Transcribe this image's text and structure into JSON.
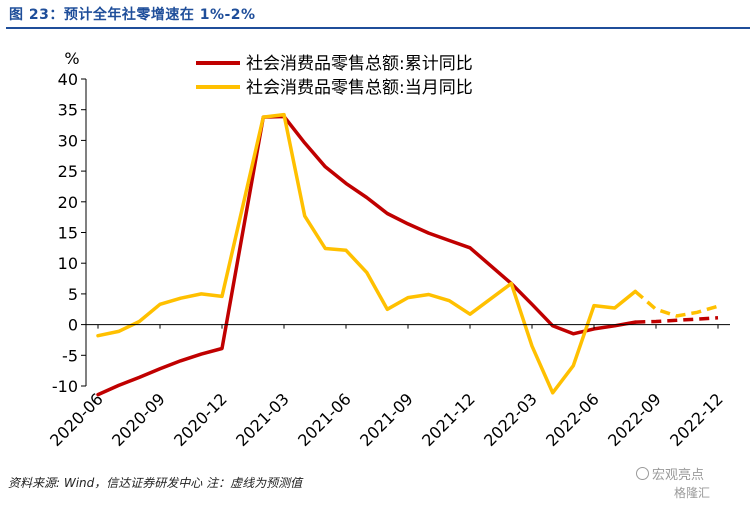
{
  "figure": {
    "title": "图 23：预计全年社零增速在 1%-2%",
    "source": "资料来源: Wind，信达证券研发中心    注：虚线为预测值",
    "watermark_line1": "宏观亮点",
    "watermark_line2": "格隆汇"
  },
  "colors": {
    "title": "#1f4e9a",
    "cumulative": "#c00000",
    "monthly": "#ffc000",
    "axis": "#000000"
  },
  "chart_data": {
    "type": "line",
    "title": "",
    "ylabel": "%",
    "xlabel": "",
    "ylim": [
      -10,
      40
    ],
    "yticks": [
      -10,
      -5,
      0,
      5,
      10,
      15,
      20,
      25,
      30,
      35,
      40
    ],
    "x_labels": [
      "2020-06",
      "2020-09",
      "2020-12",
      "2021-03",
      "2021-06",
      "2021-09",
      "2021-12",
      "2022-03",
      "2022-06",
      "2022-09",
      "2022-12"
    ],
    "x": [
      "2020-06",
      "2020-07",
      "2020-08",
      "2020-09",
      "2020-10",
      "2020-11",
      "2020-12",
      "2021-01",
      "2021-02",
      "2021-03",
      "2021-04",
      "2021-05",
      "2021-06",
      "2021-07",
      "2021-08",
      "2021-09",
      "2021-10",
      "2021-11",
      "2021-12",
      "2022-01",
      "2022-02",
      "2022-03",
      "2022-04",
      "2022-05",
      "2022-06",
      "2022-07",
      "2022-08",
      "2022-09",
      "2022-10",
      "2022-11",
      "2022-12"
    ],
    "legend_position": "top",
    "series": [
      {
        "name": "社会消费品零售总额:累计同比",
        "color": "#c00000",
        "values": [
          -11.4,
          -9.9,
          -8.6,
          -7.2,
          -5.9,
          -4.8,
          -3.9,
          null,
          33.8,
          33.9,
          29.6,
          25.7,
          23.0,
          20.7,
          18.1,
          16.4,
          14.9,
          13.7,
          12.5,
          null,
          6.7,
          3.3,
          -0.2,
          -1.5,
          -0.7,
          -0.2,
          0.4,
          0.5,
          0.7,
          0.9,
          1.1
        ],
        "forecast_from": "2022-08"
      },
      {
        "name": "社会消费品零售总额:当月同比",
        "color": "#ffc000",
        "values": [
          -1.8,
          -1.1,
          0.5,
          3.3,
          4.3,
          5.0,
          4.6,
          null,
          33.8,
          34.2,
          17.7,
          12.4,
          12.1,
          8.5,
          2.5,
          4.4,
          4.9,
          3.9,
          1.7,
          null,
          6.7,
          -3.5,
          -11.1,
          -6.7,
          3.1,
          2.7,
          5.4,
          2.5,
          1.4,
          2.0,
          3.0
        ],
        "forecast_from": "2022-08"
      }
    ]
  }
}
